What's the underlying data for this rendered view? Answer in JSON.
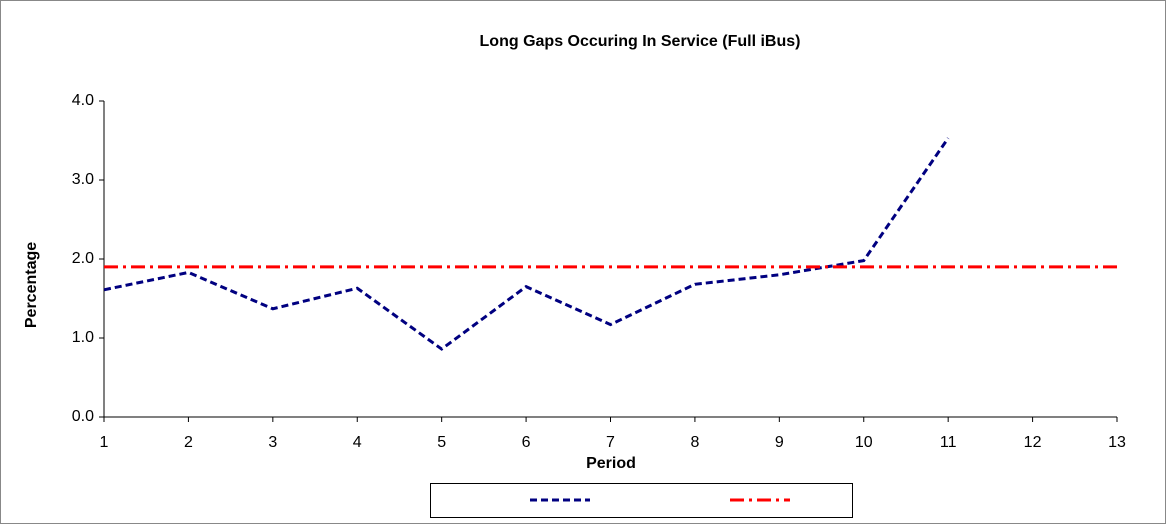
{
  "chart_data": {
    "type": "line",
    "title": "Long Gaps Occuring In Service (Full iBus)",
    "x_label": "Period",
    "y_label": "Percentage",
    "x": [
      1,
      2,
      3,
      4,
      5,
      6,
      7,
      8,
      9,
      10,
      11,
      12,
      13
    ],
    "series": [
      {
        "color": "#000080",
        "dash": "dashed",
        "values": [
          1.61,
          1.83,
          1.37,
          1.63,
          0.86,
          1.65,
          1.17,
          1.68,
          1.8,
          1.98,
          3.53,
          null,
          null
        ]
      },
      {
        "color": "#ff0000",
        "dash": "dashdot",
        "values": [
          1.9,
          1.9,
          1.9,
          1.9,
          1.9,
          1.9,
          1.9,
          1.9,
          1.9,
          1.9,
          1.9,
          1.9,
          1.9
        ]
      }
    ],
    "xlim": [
      1,
      13
    ],
    "xticks": [
      1,
      2,
      3,
      4,
      5,
      6,
      7,
      8,
      9,
      10,
      11,
      12,
      13
    ],
    "ylim": [
      0,
      4
    ],
    "yticks": [
      {
        "value": 0,
        "label": "0.0"
      },
      {
        "value": 1,
        "label": "1.0"
      },
      {
        "value": 2,
        "label": "2.0"
      },
      {
        "value": 3,
        "label": "3.0"
      },
      {
        "value": 4,
        "label": "4.0"
      }
    ],
    "legend": "bottom"
  }
}
